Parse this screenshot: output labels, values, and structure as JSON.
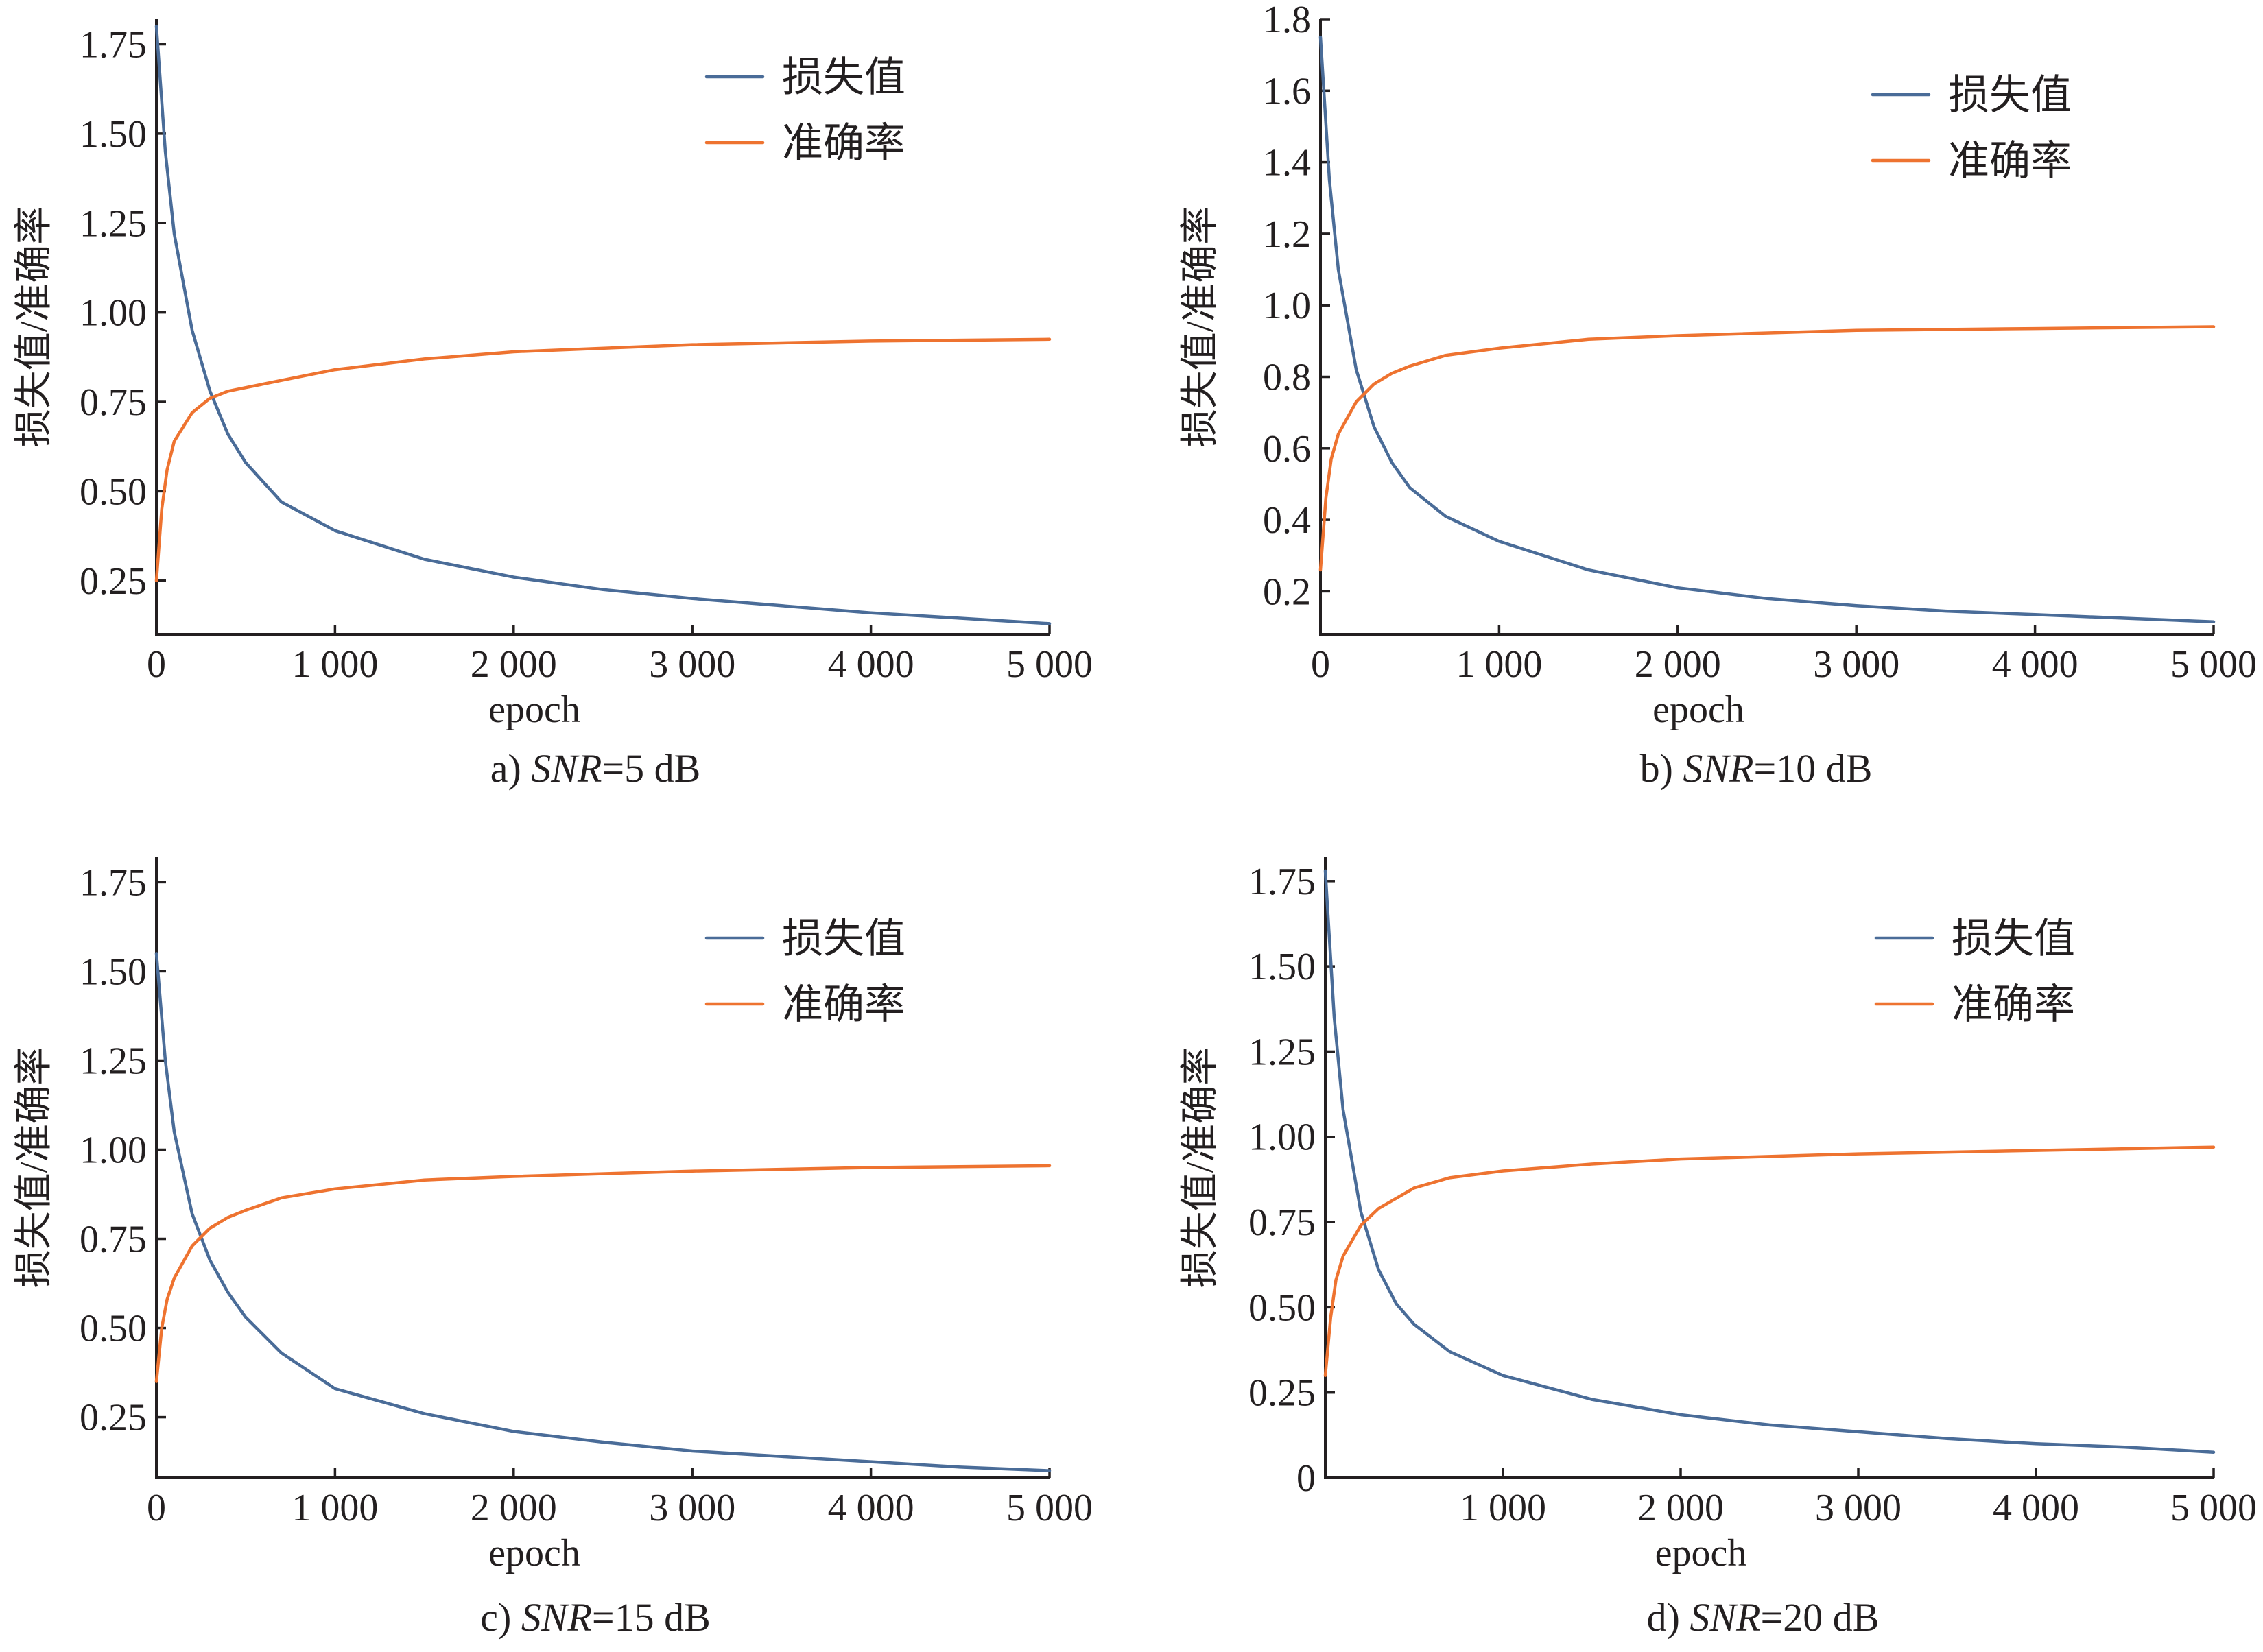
{
  "colors": {
    "loss": "#4a6c98",
    "accuracy": "#ee7330",
    "axis": "#231f20"
  },
  "chart_data": [
    {
      "type": "line",
      "caption_prefix": "a) ",
      "caption_snr": "SNR",
      "caption_suffix": "=5 dB",
      "xlabel": "epoch",
      "ylabel": "损失值/准确率",
      "xlim": [
        0,
        5000
      ],
      "ylim": [
        0.1,
        1.82
      ],
      "xticks": [
        0,
        1000,
        2000,
        3000,
        4000,
        5000
      ],
      "xtick_labels": [
        "0",
        "1 000",
        "2 000",
        "3 000",
        "4 000",
        "5 000"
      ],
      "yticks": [
        0.25,
        0.5,
        0.75,
        1.0,
        1.25,
        1.5,
        1.75
      ],
      "ytick_labels": [
        "0.25",
        "0.50",
        "0.75",
        "1.00",
        "1.25",
        "1.50",
        "1.75"
      ],
      "legend": "top-right",
      "series": [
        {
          "name": "损失值",
          "color": "#4a6c98",
          "x": [
            0,
            50,
            100,
            200,
            300,
            400,
            500,
            700,
            1000,
            1500,
            2000,
            2500,
            3000,
            3500,
            4000,
            4500,
            5000
          ],
          "y": [
            1.8,
            1.45,
            1.22,
            0.95,
            0.78,
            0.66,
            0.58,
            0.47,
            0.39,
            0.31,
            0.26,
            0.225,
            0.2,
            0.18,
            0.16,
            0.145,
            0.13
          ]
        },
        {
          "name": "准确率",
          "color": "#ee7330",
          "x": [
            0,
            30,
            60,
            100,
            200,
            300,
            400,
            500,
            700,
            1000,
            1500,
            2000,
            3000,
            4000,
            5000
          ],
          "y": [
            0.25,
            0.45,
            0.56,
            0.64,
            0.72,
            0.76,
            0.78,
            0.79,
            0.81,
            0.84,
            0.87,
            0.89,
            0.91,
            0.92,
            0.925
          ]
        }
      ]
    },
    {
      "type": "line",
      "caption_prefix": "b) ",
      "caption_snr": "SNR",
      "caption_suffix": "=10 dB",
      "xlabel": "epoch",
      "ylabel": "损失值/准确率",
      "xlim": [
        0,
        5000
      ],
      "ylim": [
        0.08,
        1.8
      ],
      "xticks": [
        0,
        1000,
        2000,
        3000,
        4000,
        5000
      ],
      "xtick_labels": [
        "0",
        "1 000",
        "2 000",
        "3 000",
        "4 000",
        "5 000"
      ],
      "yticks": [
        0.2,
        0.4,
        0.6,
        0.8,
        1.0,
        1.2,
        1.4,
        1.6,
        1.8
      ],
      "ytick_labels": [
        "0.2",
        "0.4",
        "0.6",
        "0.8",
        "1.0",
        "1.2",
        "1.4",
        "1.6",
        "1.8"
      ],
      "legend": "top-right",
      "series": [
        {
          "name": "损失值",
          "color": "#4a6c98",
          "x": [
            0,
            50,
            100,
            200,
            300,
            400,
            500,
            700,
            1000,
            1500,
            2000,
            2500,
            3000,
            3500,
            4000,
            4500,
            5000
          ],
          "y": [
            1.75,
            1.35,
            1.1,
            0.82,
            0.66,
            0.56,
            0.49,
            0.41,
            0.34,
            0.26,
            0.21,
            0.18,
            0.16,
            0.145,
            0.135,
            0.125,
            0.115
          ]
        },
        {
          "name": "准确率",
          "color": "#ee7330",
          "x": [
            0,
            30,
            60,
            100,
            200,
            300,
            400,
            500,
            700,
            1000,
            1500,
            2000,
            3000,
            4000,
            5000
          ],
          "y": [
            0.26,
            0.46,
            0.57,
            0.64,
            0.73,
            0.78,
            0.81,
            0.83,
            0.86,
            0.88,
            0.905,
            0.915,
            0.93,
            0.935,
            0.94
          ]
        }
      ]
    },
    {
      "type": "line",
      "caption_prefix": "c) ",
      "caption_snr": "SNR",
      "caption_suffix": "=15 dB",
      "xlabel": "epoch",
      "ylabel": "损失值/准确率",
      "xlim": [
        0,
        5000
      ],
      "ylim": [
        0.08,
        1.82
      ],
      "xticks": [
        0,
        1000,
        2000,
        3000,
        4000,
        5000
      ],
      "xtick_labels": [
        "0",
        "1 000",
        "2 000",
        "3 000",
        "4 000",
        "5 000"
      ],
      "yticks": [
        0.25,
        0.5,
        0.75,
        1.0,
        1.25,
        1.5,
        1.75
      ],
      "ytick_labels": [
        "0.25",
        "0.50",
        "0.75",
        "1.00",
        "1.25",
        "1.50",
        "1.75"
      ],
      "legend": "top-right",
      "series": [
        {
          "name": "损失值",
          "color": "#4a6c98",
          "x": [
            0,
            50,
            100,
            200,
            300,
            400,
            500,
            700,
            1000,
            1500,
            2000,
            2500,
            3000,
            3500,
            4000,
            4500,
            5000
          ],
          "y": [
            1.55,
            1.25,
            1.05,
            0.82,
            0.69,
            0.6,
            0.53,
            0.43,
            0.33,
            0.26,
            0.21,
            0.18,
            0.155,
            0.14,
            0.125,
            0.11,
            0.1
          ]
        },
        {
          "name": "准确率",
          "color": "#ee7330",
          "x": [
            0,
            30,
            60,
            100,
            200,
            300,
            400,
            500,
            700,
            1000,
            1500,
            2000,
            3000,
            4000,
            5000
          ],
          "y": [
            0.35,
            0.5,
            0.58,
            0.64,
            0.73,
            0.78,
            0.81,
            0.83,
            0.865,
            0.89,
            0.915,
            0.925,
            0.94,
            0.95,
            0.955
          ]
        }
      ]
    },
    {
      "type": "line",
      "caption_prefix": "d) ",
      "caption_snr": "SNR",
      "caption_suffix": "=20 dB",
      "xlabel": "epoch",
      "ylabel": "损失值/准确率",
      "xlim": [
        0,
        5000
      ],
      "ylim": [
        0,
        1.82
      ],
      "xticks": [
        1000,
        2000,
        3000,
        4000,
        5000
      ],
      "xtick_labels": [
        "1 000",
        "2 000",
        "3 000",
        "4 000",
        "5 000"
      ],
      "yticks": [
        0,
        0.25,
        0.5,
        0.75,
        1.0,
        1.25,
        1.5,
        1.75
      ],
      "ytick_labels": [
        "0",
        "0.25",
        "0.50",
        "0.75",
        "1.00",
        "1.25",
        "1.50",
        "1.75"
      ],
      "legend": "top-right",
      "series": [
        {
          "name": "损失值",
          "color": "#4a6c98",
          "x": [
            0,
            50,
            100,
            200,
            300,
            400,
            500,
            700,
            1000,
            1500,
            2000,
            2500,
            3000,
            3500,
            4000,
            4500,
            5000
          ],
          "y": [
            1.78,
            1.35,
            1.08,
            0.78,
            0.61,
            0.51,
            0.45,
            0.37,
            0.3,
            0.23,
            0.185,
            0.155,
            0.135,
            0.115,
            0.1,
            0.09,
            0.075
          ]
        },
        {
          "name": "准确率",
          "color": "#ee7330",
          "x": [
            0,
            30,
            60,
            100,
            200,
            300,
            400,
            500,
            700,
            1000,
            1500,
            2000,
            3000,
            4000,
            5000
          ],
          "y": [
            0.3,
            0.47,
            0.58,
            0.65,
            0.74,
            0.79,
            0.82,
            0.85,
            0.88,
            0.9,
            0.92,
            0.935,
            0.95,
            0.96,
            0.97
          ]
        }
      ]
    }
  ]
}
